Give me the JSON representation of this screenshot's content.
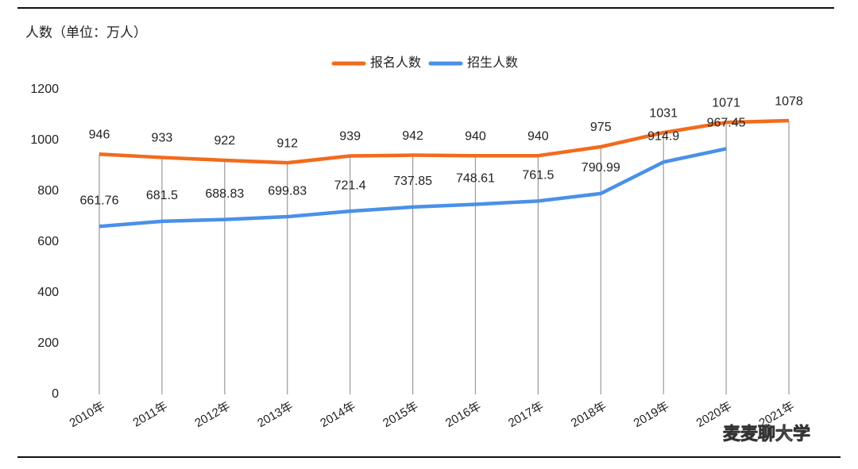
{
  "chart_data": {
    "type": "line",
    "title": "人数（单位：万人）",
    "categories": [
      "2010年",
      "2011年",
      "2012年",
      "2013年",
      "2014年",
      "2015年",
      "2016年",
      "2017年",
      "2018年",
      "2019年",
      "2020年",
      "2021年"
    ],
    "series": [
      {
        "name": "报名人数",
        "color": "#f26b1d",
        "values": [
          946,
          933,
          922,
          912,
          939,
          942,
          940,
          940,
          975,
          1031,
          1071,
          1078
        ]
      },
      {
        "name": "招生人数",
        "color": "#4a90e8",
        "values": [
          661.76,
          681.5,
          688.83,
          699.83,
          721.4,
          737.85,
          748.61,
          761.5,
          790.99,
          914.9,
          967.45,
          null
        ]
      }
    ],
    "ylim": [
      0,
      1200
    ],
    "yticks": [
      0,
      200,
      400,
      600,
      800,
      1000,
      1200
    ],
    "grid": true,
    "legend": "top",
    "annotations": [
      "麦麦聊大学"
    ]
  }
}
